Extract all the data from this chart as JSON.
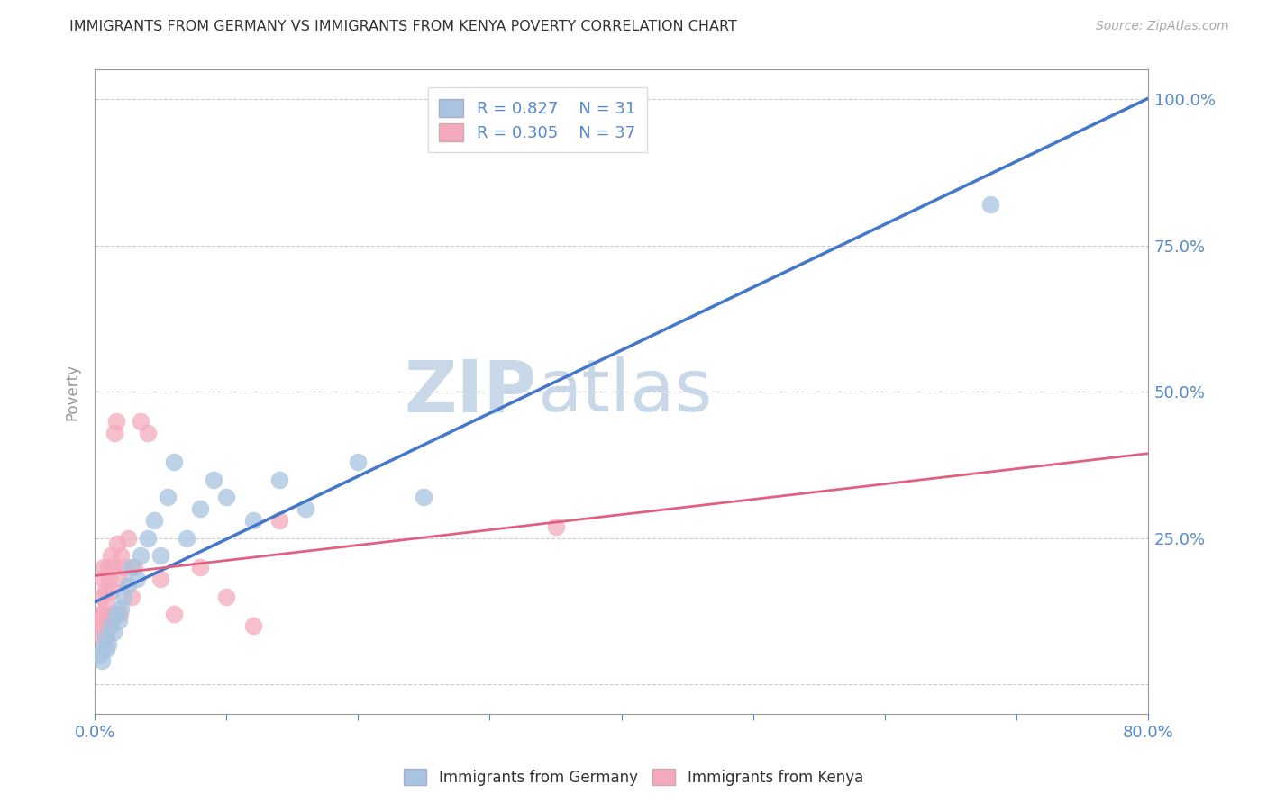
{
  "title": "IMMIGRANTS FROM GERMANY VS IMMIGRANTS FROM KENYA POVERTY CORRELATION CHART",
  "source": "Source: ZipAtlas.com",
  "ylabel": "Poverty",
  "xlabel": "",
  "xlim": [
    0.0,
    0.8
  ],
  "ylim": [
    -0.05,
    1.05
  ],
  "xticks": [
    0.0,
    0.1,
    0.2,
    0.3,
    0.4,
    0.5,
    0.6,
    0.7,
    0.8
  ],
  "xticklabels": [
    "0.0%",
    "",
    "",
    "",
    "",
    "",
    "",
    "",
    "80.0%"
  ],
  "yticks": [
    0.0,
    0.25,
    0.5,
    0.75,
    1.0
  ],
  "yticklabels": [
    "",
    "25.0%",
    "50.0%",
    "75.0%",
    "100.0%"
  ],
  "germany_R": 0.827,
  "germany_N": 31,
  "kenya_R": 0.305,
  "kenya_N": 37,
  "germany_color": "#a8c4e0",
  "kenya_color": "#f4aabc",
  "germany_line_color": "#4477cc",
  "kenya_line_color": "#e06080",
  "background_color": "#ffffff",
  "grid_color": "#cccccc",
  "axis_color": "#999999",
  "title_color": "#333333",
  "label_color": "#5588cc",
  "watermark_color": "#c8d8e8",
  "germany_x": [
    0.003,
    0.005,
    0.006,
    0.008,
    0.009,
    0.01,
    0.012,
    0.014,
    0.016,
    0.018,
    0.02,
    0.022,
    0.025,
    0.028,
    0.032,
    0.035,
    0.04,
    0.045,
    0.05,
    0.055,
    0.06,
    0.07,
    0.08,
    0.09,
    0.1,
    0.12,
    0.14,
    0.16,
    0.2,
    0.25,
    0.68
  ],
  "germany_y": [
    0.05,
    0.04,
    0.06,
    0.08,
    0.06,
    0.07,
    0.1,
    0.09,
    0.12,
    0.11,
    0.13,
    0.15,
    0.17,
    0.2,
    0.18,
    0.22,
    0.25,
    0.28,
    0.22,
    0.32,
    0.38,
    0.25,
    0.3,
    0.35,
    0.32,
    0.28,
    0.35,
    0.3,
    0.38,
    0.32,
    0.82
  ],
  "kenya_x": [
    0.003,
    0.004,
    0.005,
    0.005,
    0.006,
    0.006,
    0.007,
    0.007,
    0.008,
    0.008,
    0.009,
    0.01,
    0.01,
    0.011,
    0.012,
    0.012,
    0.013,
    0.014,
    0.015,
    0.016,
    0.017,
    0.018,
    0.019,
    0.02,
    0.022,
    0.025,
    0.028,
    0.03,
    0.035,
    0.04,
    0.05,
    0.06,
    0.08,
    0.1,
    0.12,
    0.14,
    0.35
  ],
  "kenya_y": [
    0.1,
    0.12,
    0.08,
    0.15,
    0.1,
    0.18,
    0.12,
    0.2,
    0.08,
    0.16,
    0.14,
    0.1,
    0.2,
    0.18,
    0.22,
    0.12,
    0.16,
    0.2,
    0.43,
    0.45,
    0.24,
    0.18,
    0.12,
    0.22,
    0.2,
    0.25,
    0.15,
    0.2,
    0.45,
    0.43,
    0.18,
    0.12,
    0.2,
    0.15,
    0.1,
    0.28,
    0.27
  ]
}
